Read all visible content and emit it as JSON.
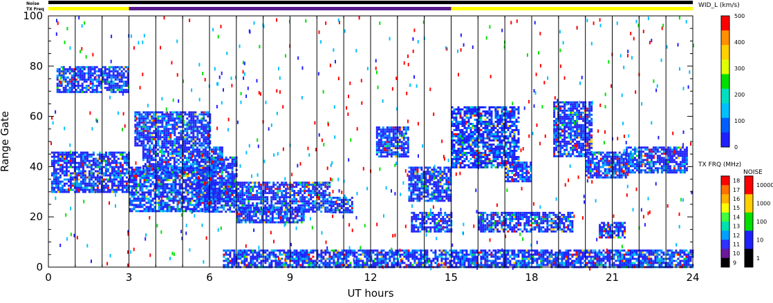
{
  "chart_data": {
    "type": "heatmap",
    "xlabel": "UT hours",
    "ylabel": "Range Gate",
    "xlim": [
      0,
      24
    ],
    "ylim": [
      0,
      100
    ],
    "x_ticks": [
      "0",
      "3",
      "6",
      "9",
      "12",
      "15",
      "18",
      "21",
      "24"
    ],
    "y_ticks": [
      "0",
      "20",
      "40",
      "60",
      "80",
      "100"
    ],
    "vertical_lines_ut": [
      1,
      2,
      3,
      4,
      5,
      6,
      7,
      8,
      9,
      10,
      11,
      12,
      13,
      14,
      15,
      16,
      17,
      18,
      19,
      20,
      21,
      22,
      23
    ],
    "strip_labels": {
      "noise": "Noise",
      "tx_freq": "TX Freq"
    },
    "tx_freq_segments": [
      {
        "start": 0,
        "end": 3,
        "color": "#ffff00"
      },
      {
        "start": 3,
        "end": 15,
        "color": "#5a1a8c"
      },
      {
        "start": 15,
        "end": 24,
        "color": "#ffff00"
      }
    ],
    "echo_regions": [
      {
        "t0": 0.1,
        "t1": 3.0,
        "g0": 30,
        "g1": 46
      },
      {
        "t0": 3.0,
        "t1": 6.2,
        "g0": 22,
        "g1": 40
      },
      {
        "t0": 3.5,
        "t1": 6.5,
        "g0": 38,
        "g1": 48
      },
      {
        "t0": 5.5,
        "t1": 7.0,
        "g0": 26,
        "g1": 44
      },
      {
        "t0": 5.8,
        "t1": 10.5,
        "g0": 22,
        "g1": 34
      },
      {
        "t0": 7.0,
        "t1": 9.5,
        "g0": 18,
        "g1": 24
      },
      {
        "t0": 10.5,
        "t1": 11.3,
        "g0": 22,
        "g1": 28
      },
      {
        "t0": 12.2,
        "t1": 13.4,
        "g0": 44,
        "g1": 56
      },
      {
        "t0": 13.4,
        "t1": 15.0,
        "g0": 26,
        "g1": 40
      },
      {
        "t0": 15.0,
        "t1": 17.5,
        "g0": 40,
        "g1": 64
      },
      {
        "t0": 17.0,
        "t1": 18.0,
        "g0": 34,
        "g1": 42
      },
      {
        "t0": 18.8,
        "t1": 20.2,
        "g0": 44,
        "g1": 66
      },
      {
        "t0": 20.0,
        "t1": 21.5,
        "g0": 36,
        "g1": 46
      },
      {
        "t0": 21.5,
        "t1": 23.8,
        "g0": 38,
        "g1": 48
      },
      {
        "t0": 13.5,
        "t1": 15.0,
        "g0": 14,
        "g1": 22
      },
      {
        "t0": 16.0,
        "t1": 19.5,
        "g0": 14,
        "g1": 22
      },
      {
        "t0": 20.5,
        "t1": 21.5,
        "g0": 12,
        "g1": 18
      },
      {
        "t0": 0.3,
        "t1": 3.0,
        "g0": 70,
        "g1": 80
      },
      {
        "t0": 3.2,
        "t1": 6.0,
        "g0": 48,
        "g1": 62
      },
      {
        "t0": 6.5,
        "t1": 24.0,
        "g0": 0,
        "g1": 7
      }
    ],
    "colorbars": [
      {
        "title": "WID_L (km/s)",
        "ticks": [
          "500",
          "400",
          "300",
          "200",
          "100",
          "0"
        ],
        "colors": [
          "#ff0000",
          "#ff9000",
          "#ffd000",
          "#e0ff00",
          "#00e000",
          "#00e0c0",
          "#00c0ff",
          "#0060ff",
          "#2020ff"
        ]
      },
      {
        "title": "TX FRQ (MHz)",
        "ticks": [
          "18",
          "17",
          "16",
          "15",
          "14",
          "13",
          "12",
          "11",
          "10",
          "9"
        ],
        "colors": [
          "#ff0000",
          "#ff7000",
          "#ffb000",
          "#ffff00",
          "#40ff40",
          "#00e0b0",
          "#00a0ff",
          "#3030ff",
          "#6a1a9a",
          "#000000"
        ]
      },
      {
        "title": "NOISE",
        "ticks": [
          "10000",
          "1000",
          "100",
          "10",
          "1"
        ],
        "colors": [
          "#ff0000",
          "#ffd000",
          "#00e000",
          "#2020ff",
          "#000000"
        ]
      }
    ]
  }
}
